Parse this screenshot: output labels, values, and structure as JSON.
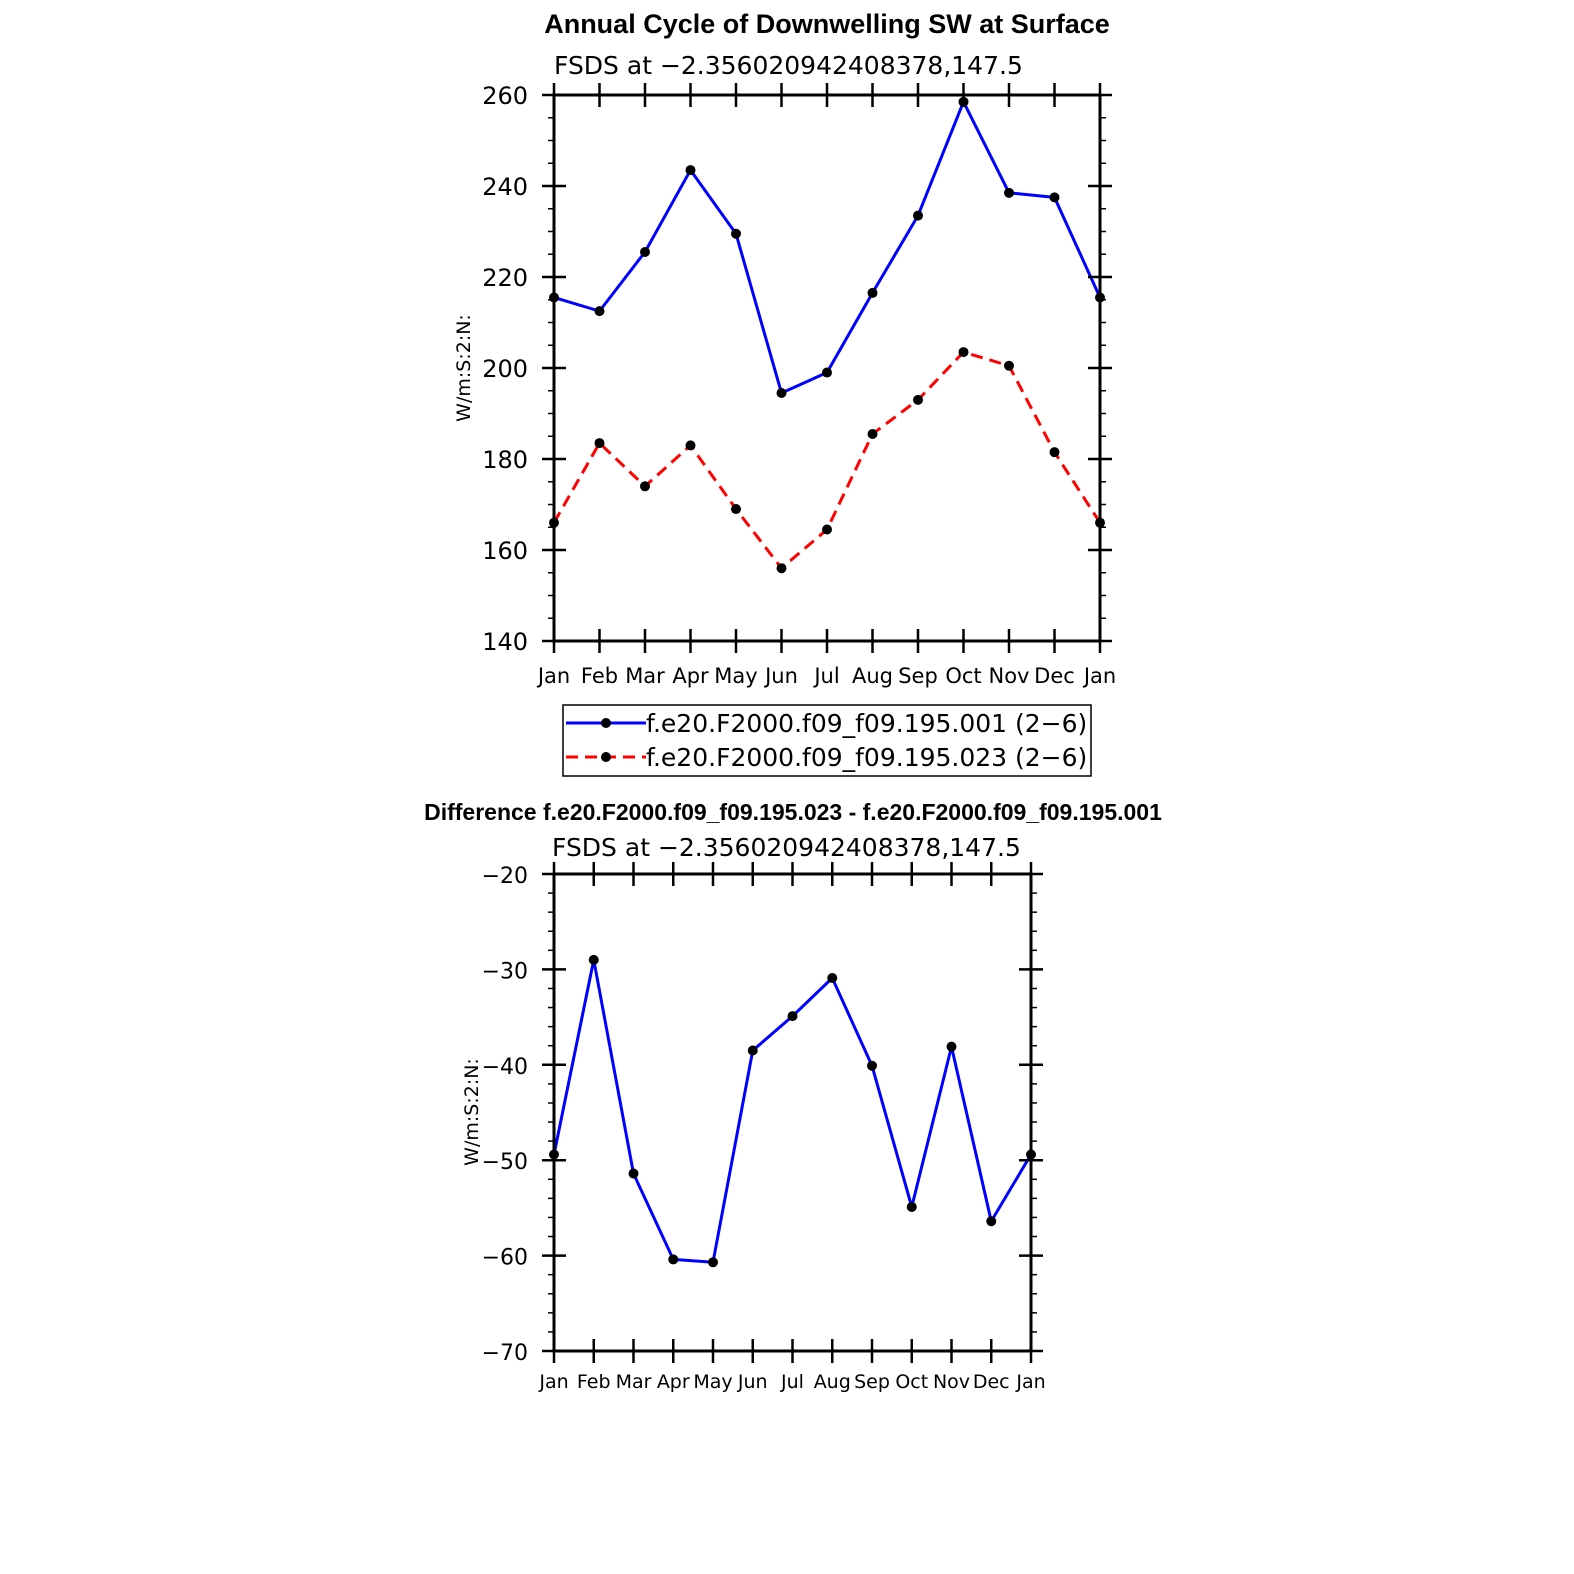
{
  "chart_data": [
    {
      "type": "line",
      "title": "Annual Cycle of Downwelling SW at Surface",
      "subtitle": "FSDS at −2.356020942408378,147.5",
      "ylabel": "W/m:S:2:N:",
      "ylim": [
        140,
        260
      ],
      "yticks": [
        "140",
        "160",
        "180",
        "200",
        "220",
        "240",
        "260"
      ],
      "categories": [
        "Jan",
        "Feb",
        "Mar",
        "Apr",
        "May",
        "Jun",
        "Jul",
        "Aug",
        "Sep",
        "Oct",
        "Nov",
        "Dec",
        "Jan"
      ],
      "series": [
        {
          "name": "f.e20.F2000.f09_f09.195.001 (2−6)",
          "color": "#0000ff",
          "dash": "solid",
          "values": [
            215.5,
            212.5,
            225.5,
            243.5,
            229.5,
            194.5,
            199.0,
            216.5,
            233.5,
            258.5,
            238.5,
            237.5,
            215.5
          ]
        },
        {
          "name": "f.e20.F2000.f09_f09.195.023 (2−6)",
          "color": "#ff0000",
          "dash": "dashed",
          "values": [
            166.0,
            183.5,
            174.0,
            183.0,
            169.0,
            156.0,
            164.5,
            185.5,
            193.0,
            203.5,
            200.5,
            181.5,
            166.0
          ]
        }
      ],
      "legend": "below"
    },
    {
      "type": "line",
      "title": "Difference f.e20.F2000.f09_f09.195.023 - f.e20.F2000.f09_f09.195.001",
      "subtitle": "FSDS at −2.356020942408378,147.5",
      "ylabel": "W/m:S:2:N:",
      "ylim": [
        -70,
        -20
      ],
      "yticks": [
        "−70",
        "−60",
        "−50",
        "−40",
        "−30",
        "−20"
      ],
      "categories": [
        "Jan",
        "Feb",
        "Mar",
        "Apr",
        "May",
        "Jun",
        "Jul",
        "Aug",
        "Sep",
        "Oct",
        "Nov",
        "Dec",
        "Jan"
      ],
      "series": [
        {
          "color": "#0000ff",
          "dash": "solid",
          "values": [
            -49.4,
            -29.0,
            -51.4,
            -60.4,
            -60.7,
            -38.5,
            -34.9,
            -30.9,
            -40.1,
            -54.9,
            -38.1,
            -56.4,
            -49.4
          ]
        }
      ]
    }
  ]
}
